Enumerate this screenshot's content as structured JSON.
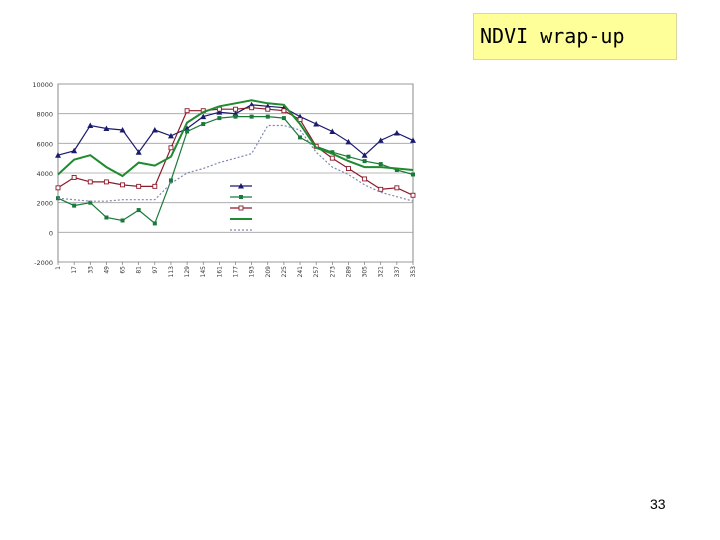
{
  "slide": {
    "title": "NDVI wrap-up",
    "page_number": "33"
  },
  "chart_data": {
    "type": "line",
    "title": "",
    "xlabel": "",
    "ylabel": "",
    "x": [
      1,
      17,
      33,
      49,
      65,
      81,
      97,
      113,
      129,
      145,
      161,
      177,
      193,
      209,
      225,
      241,
      257,
      273,
      289,
      305,
      321,
      337,
      353
    ],
    "ylim": [
      -2000,
      10000
    ],
    "yticks": [
      -2000,
      0,
      2000,
      4000,
      6000,
      8000,
      10000
    ],
    "grid": true,
    "legend_position": "right",
    "series": [
      {
        "name": "",
        "color": "#1a1a6e",
        "marker": "triangle",
        "dash": "none",
        "values": [
          5200,
          5500,
          7200,
          7000,
          6900,
          5400,
          6900,
          6500,
          7000,
          7800,
          8100,
          8000,
          8600,
          8500,
          8400,
          7800,
          7300,
          6800,
          6100,
          5200,
          6200,
          6700,
          6200
        ]
      },
      {
        "name": "",
        "color": "#1a7a3a",
        "marker": "square-filled",
        "dash": "none",
        "values": [
          2300,
          1800,
          2000,
          1000,
          800,
          1500,
          600,
          3500,
          6800,
          7300,
          7700,
          7800,
          7800,
          7800,
          7700,
          6400,
          5800,
          5400,
          5100,
          4800,
          4600,
          4200,
          3900
        ]
      },
      {
        "name": "",
        "color": "#8b1a2a",
        "marker": "square-open",
        "dash": "none",
        "values": [
          3000,
          3700,
          3400,
          3400,
          3200,
          3100,
          3100,
          5700,
          8200,
          8200,
          8300,
          8300,
          8400,
          8300,
          8200,
          7600,
          5800,
          5000,
          4300,
          3600,
          2900,
          3000,
          2500
        ]
      },
      {
        "name": "",
        "color": "#1f8a2e",
        "marker": "none",
        "dash": "none",
        "values": [
          3900,
          4900,
          5200,
          4400,
          3800,
          4700,
          4500,
          5100,
          7400,
          8100,
          8500,
          8700,
          8900,
          8700,
          8600,
          7300,
          5700,
          5300,
          4800,
          4400,
          4400,
          4300,
          4200
        ]
      },
      {
        "name": "",
        "color": "#7d86b0",
        "marker": "none",
        "dash": "dotted",
        "values": [
          2300,
          2200,
          2100,
          2100,
          2200,
          2200,
          2200,
          3300,
          4000,
          4300,
          4700,
          5000,
          5300,
          7200,
          7200,
          6900,
          5400,
          4400,
          3900,
          3200,
          2700,
          2400,
          2100
        ]
      }
    ]
  }
}
